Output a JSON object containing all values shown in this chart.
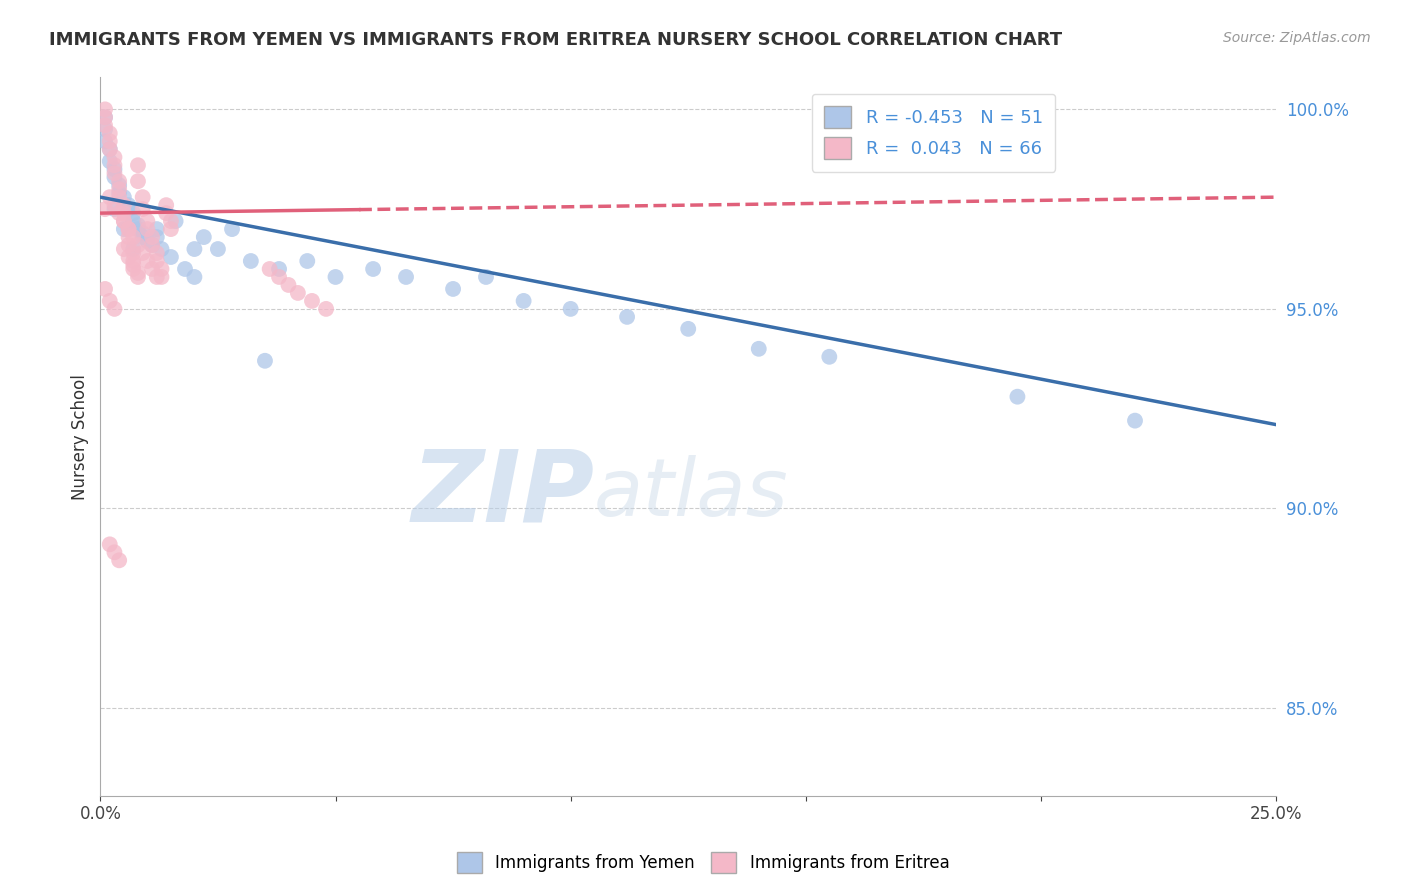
{
  "title": "IMMIGRANTS FROM YEMEN VS IMMIGRANTS FROM ERITREA NURSERY SCHOOL CORRELATION CHART",
  "source": "Source: ZipAtlas.com",
  "ylabel": "Nursery School",
  "xmin": 0.0,
  "xmax": 0.25,
  "ymin": 0.828,
  "ymax": 1.008,
  "legend_R_blue": "-0.453",
  "legend_N_blue": "51",
  "legend_R_pink": "0.043",
  "legend_N_pink": "66",
  "blue_color": "#aec6e8",
  "pink_color": "#f4b8c8",
  "blue_line_color": "#3a6eaa",
  "pink_line_color": "#e0607a",
  "watermark_ZIP": "ZIP",
  "watermark_atlas": "atlas",
  "blue_line_x0": 0.0,
  "blue_line_y0": 0.978,
  "blue_line_x1": 0.25,
  "blue_line_y1": 0.921,
  "pink_line_x0": 0.0,
  "pink_line_y0": 0.974,
  "pink_line_x1": 0.25,
  "pink_line_y1": 0.978,
  "blue_dots_x": [
    0.001,
    0.001,
    0.001,
    0.002,
    0.002,
    0.003,
    0.003,
    0.004,
    0.004,
    0.005,
    0.006,
    0.006,
    0.007,
    0.007,
    0.008,
    0.008,
    0.009,
    0.01,
    0.011,
    0.012,
    0.013,
    0.015,
    0.016,
    0.018,
    0.02,
    0.022,
    0.025,
    0.028,
    0.032,
    0.038,
    0.044,
    0.05,
    0.058,
    0.065,
    0.075,
    0.082,
    0.09,
    0.1,
    0.112,
    0.125,
    0.14,
    0.155,
    0.003,
    0.005,
    0.007,
    0.009,
    0.012,
    0.02,
    0.035,
    0.195,
    0.22
  ],
  "blue_dots_y": [
    0.998,
    0.995,
    0.992,
    0.99,
    0.987,
    0.985,
    0.983,
    0.981,
    0.979,
    0.978,
    0.976,
    0.975,
    0.974,
    0.972,
    0.971,
    0.97,
    0.969,
    0.967,
    0.966,
    0.968,
    0.965,
    0.963,
    0.972,
    0.96,
    0.958,
    0.968,
    0.965,
    0.97,
    0.962,
    0.96,
    0.962,
    0.958,
    0.96,
    0.958,
    0.955,
    0.958,
    0.952,
    0.95,
    0.948,
    0.945,
    0.94,
    0.938,
    0.975,
    0.97,
    0.965,
    0.968,
    0.97,
    0.965,
    0.937,
    0.928,
    0.922
  ],
  "pink_dots_x": [
    0.001,
    0.001,
    0.001,
    0.002,
    0.002,
    0.002,
    0.003,
    0.003,
    0.003,
    0.004,
    0.004,
    0.004,
    0.005,
    0.005,
    0.005,
    0.006,
    0.006,
    0.006,
    0.007,
    0.007,
    0.007,
    0.008,
    0.008,
    0.008,
    0.009,
    0.009,
    0.01,
    0.01,
    0.011,
    0.011,
    0.012,
    0.012,
    0.013,
    0.013,
    0.014,
    0.014,
    0.015,
    0.015,
    0.001,
    0.002,
    0.003,
    0.004,
    0.005,
    0.006,
    0.007,
    0.008,
    0.009,
    0.01,
    0.011,
    0.012,
    0.001,
    0.002,
    0.003,
    0.036,
    0.038,
    0.04,
    0.042,
    0.045,
    0.048,
    0.005,
    0.006,
    0.007,
    0.008,
    0.002,
    0.003,
    0.004
  ],
  "pink_dots_y": [
    1.0,
    0.998,
    0.996,
    0.994,
    0.992,
    0.99,
    0.988,
    0.986,
    0.984,
    0.982,
    0.98,
    0.978,
    0.976,
    0.974,
    0.972,
    0.97,
    0.968,
    0.966,
    0.964,
    0.962,
    0.96,
    0.958,
    0.986,
    0.982,
    0.978,
    0.975,
    0.972,
    0.97,
    0.968,
    0.966,
    0.964,
    0.962,
    0.96,
    0.958,
    0.976,
    0.974,
    0.972,
    0.97,
    0.975,
    0.978,
    0.976,
    0.974,
    0.972,
    0.97,
    0.968,
    0.966,
    0.964,
    0.962,
    0.96,
    0.958,
    0.955,
    0.952,
    0.95,
    0.96,
    0.958,
    0.956,
    0.954,
    0.952,
    0.95,
    0.965,
    0.963,
    0.961,
    0.959,
    0.891,
    0.889,
    0.887
  ]
}
